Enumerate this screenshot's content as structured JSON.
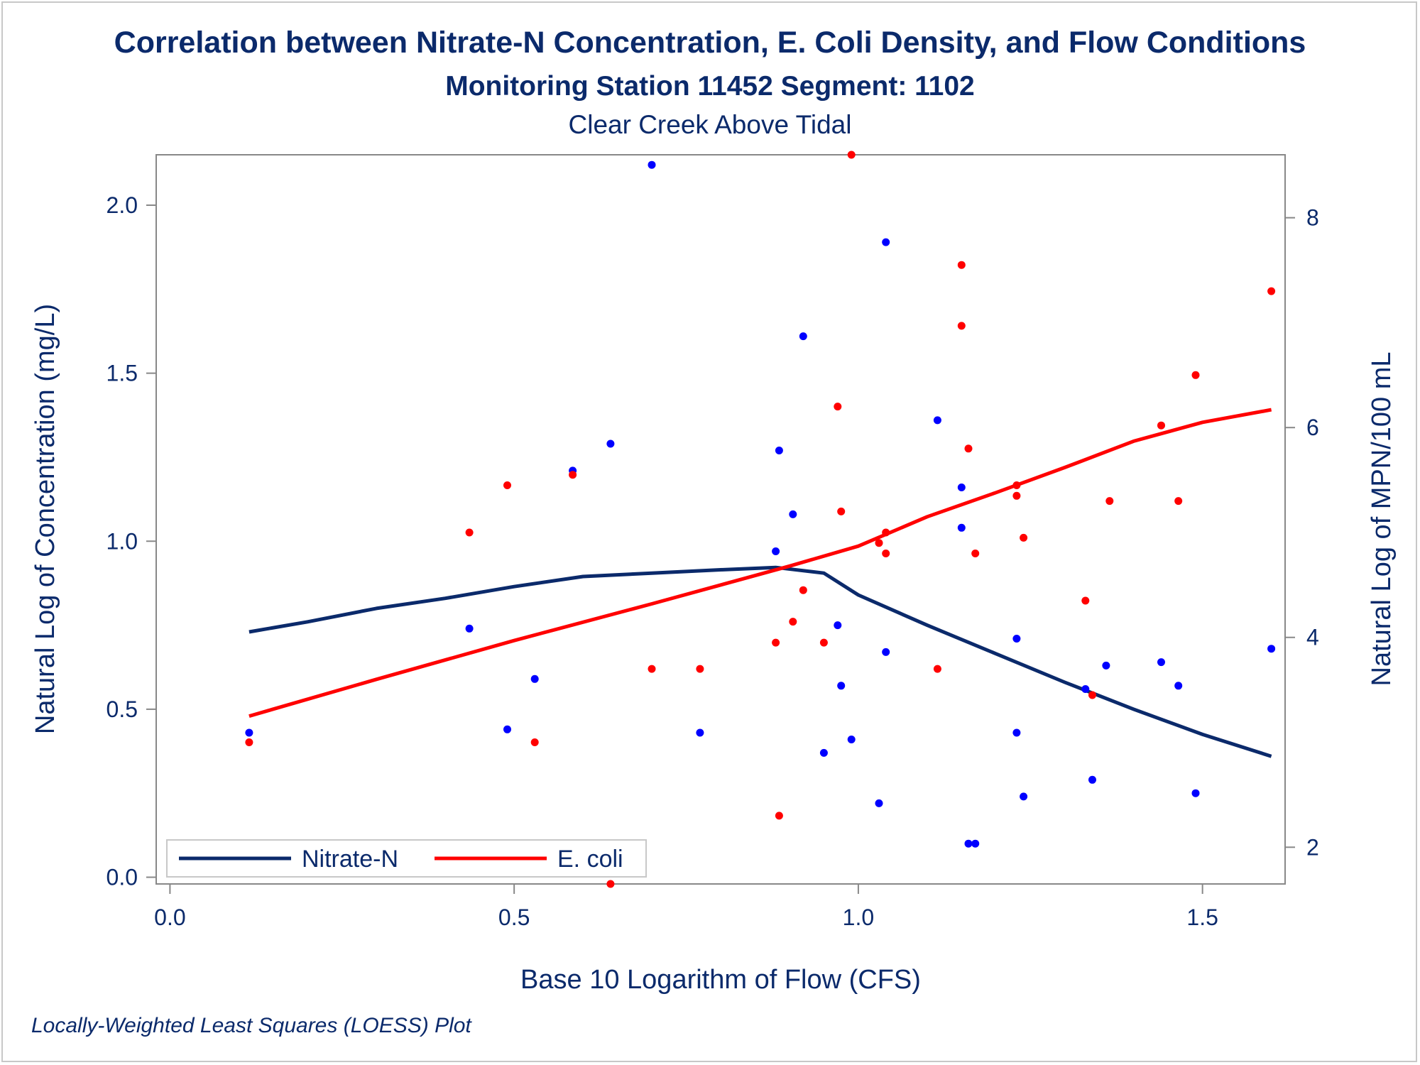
{
  "titles": {
    "title": "Correlation between Nitrate-N Concentration, E. Coli Density, and Flow Conditions",
    "subtitle": "Monitoring Station 11452 Segment: 1102",
    "subtitle2": "Clear Creek Above Tidal"
  },
  "footnote": "Locally-Weighted Least Squares (LOESS) Plot",
  "colors": {
    "nitrate": "#0b2a6b",
    "nitrate_points": "#0000ff",
    "ecoli": "#ff0000",
    "text": "#0b2a6b",
    "frame": "#888888"
  },
  "chart_data": {
    "type": "scatter",
    "xlabel": "Base 10 Logarithm of Flow (CFS)",
    "ylabel": "Natural Log of Concentration (mg/L)",
    "y2label": "Natural Log of MPN/100 mL",
    "xlim": [
      -0.02,
      1.62
    ],
    "ylim": [
      -0.02,
      2.15
    ],
    "y2lim": [
      1.65,
      8.6
    ],
    "xticks": [
      "0.0",
      "0.5",
      "1.0",
      "1.5"
    ],
    "yticks": [
      "0.0",
      "0.5",
      "1.0",
      "1.5",
      "2.0"
    ],
    "y2ticks": [
      "2",
      "4",
      "6",
      "8"
    ],
    "legend_position": "bottom-left",
    "grid": false,
    "series": [
      {
        "name": "Nitrate-N",
        "axis": "left",
        "points": [
          [
            0.115,
            0.43
          ],
          [
            0.435,
            0.74
          ],
          [
            0.49,
            0.44
          ],
          [
            0.53,
            0.59
          ],
          [
            0.585,
            1.21
          ],
          [
            0.64,
            1.29
          ],
          [
            0.7,
            2.12
          ],
          [
            0.77,
            0.43
          ],
          [
            0.88,
            0.97
          ],
          [
            0.885,
            1.27
          ],
          [
            0.905,
            1.08
          ],
          [
            0.92,
            1.61
          ],
          [
            0.95,
            0.37
          ],
          [
            0.97,
            0.75
          ],
          [
            0.975,
            0.57
          ],
          [
            0.99,
            0.41
          ],
          [
            1.03,
            0.22
          ],
          [
            1.04,
            1.89
          ],
          [
            1.04,
            0.67
          ],
          [
            1.115,
            1.36
          ],
          [
            1.15,
            1.04
          ],
          [
            1.15,
            1.16
          ],
          [
            1.16,
            0.1
          ],
          [
            1.17,
            0.1
          ],
          [
            1.23,
            0.71
          ],
          [
            1.23,
            0.43
          ],
          [
            1.24,
            0.24
          ],
          [
            1.33,
            0.56
          ],
          [
            1.34,
            0.29
          ],
          [
            1.36,
            0.63
          ],
          [
            1.44,
            0.64
          ],
          [
            1.465,
            0.57
          ],
          [
            1.49,
            0.25
          ],
          [
            1.6,
            0.68
          ]
        ],
        "loess": [
          [
            0.115,
            0.73
          ],
          [
            0.2,
            0.76
          ],
          [
            0.3,
            0.8
          ],
          [
            0.4,
            0.83
          ],
          [
            0.5,
            0.865
          ],
          [
            0.6,
            0.895
          ],
          [
            0.7,
            0.905
          ],
          [
            0.8,
            0.915
          ],
          [
            0.88,
            0.922
          ],
          [
            0.95,
            0.905
          ],
          [
            1.0,
            0.84
          ],
          [
            1.1,
            0.75
          ],
          [
            1.2,
            0.665
          ],
          [
            1.3,
            0.58
          ],
          [
            1.4,
            0.5
          ],
          [
            1.5,
            0.425
          ],
          [
            1.6,
            0.36
          ]
        ]
      },
      {
        "name": "E. coli",
        "axis": "right",
        "points": [
          [
            0.115,
            3.0
          ],
          [
            0.435,
            5.0
          ],
          [
            0.49,
            5.45
          ],
          [
            0.53,
            3.0
          ],
          [
            0.585,
            5.55
          ],
          [
            0.64,
            1.65
          ],
          [
            0.7,
            3.7
          ],
          [
            0.77,
            3.7
          ],
          [
            0.88,
            3.95
          ],
          [
            0.885,
            2.3
          ],
          [
            0.905,
            4.15
          ],
          [
            0.92,
            4.45
          ],
          [
            0.95,
            3.95
          ],
          [
            0.97,
            6.2
          ],
          [
            0.975,
            5.2
          ],
          [
            0.99,
            8.6
          ],
          [
            1.03,
            4.9
          ],
          [
            1.04,
            5.0
          ],
          [
            1.04,
            4.8
          ],
          [
            1.115,
            3.7
          ],
          [
            1.15,
            7.55
          ],
          [
            1.15,
            6.97
          ],
          [
            1.16,
            5.8
          ],
          [
            1.17,
            4.8
          ],
          [
            1.23,
            5.45
          ],
          [
            1.23,
            5.35
          ],
          [
            1.24,
            4.95
          ],
          [
            1.33,
            4.35
          ],
          [
            1.34,
            3.45
          ],
          [
            1.365,
            5.3
          ],
          [
            1.44,
            6.02
          ],
          [
            1.465,
            5.3
          ],
          [
            1.49,
            6.5
          ],
          [
            1.6,
            7.3
          ]
        ],
        "loess": [
          [
            0.115,
            3.25
          ],
          [
            0.3,
            3.6
          ],
          [
            0.5,
            3.97
          ],
          [
            0.7,
            4.32
          ],
          [
            0.9,
            4.68
          ],
          [
            1.0,
            4.87
          ],
          [
            1.1,
            5.15
          ],
          [
            1.2,
            5.38
          ],
          [
            1.3,
            5.62
          ],
          [
            1.4,
            5.87
          ],
          [
            1.5,
            6.05
          ],
          [
            1.6,
            6.17
          ]
        ]
      }
    ]
  }
}
